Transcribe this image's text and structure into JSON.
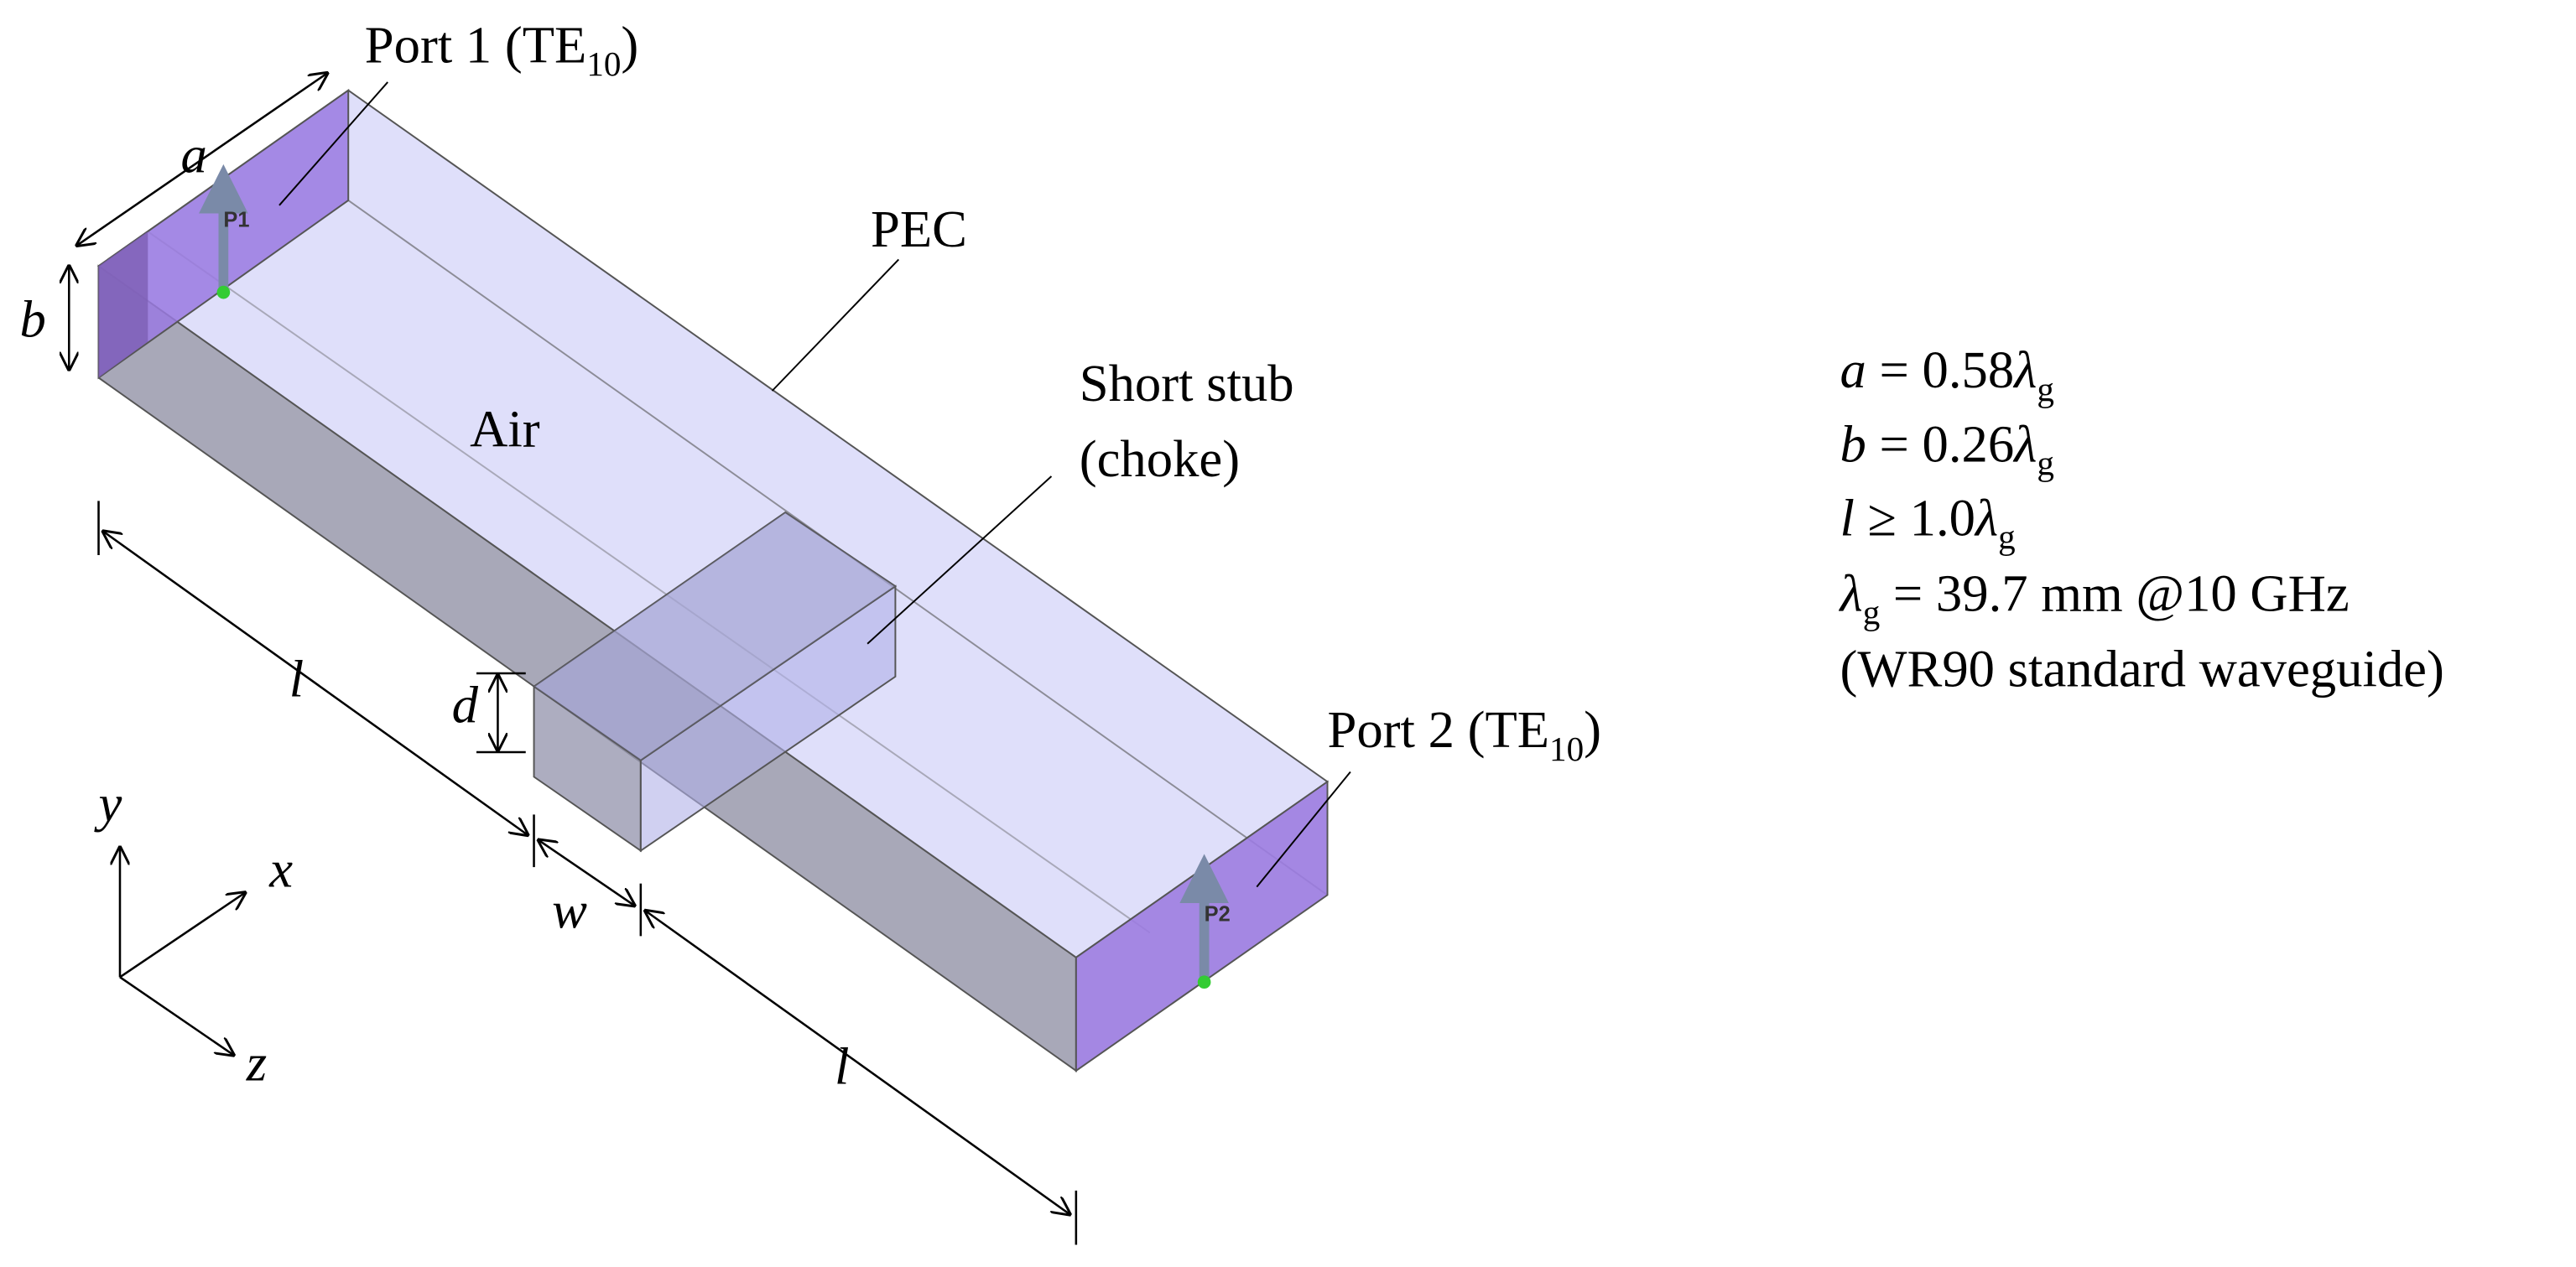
{
  "ports": [
    {
      "prefix": "Port 1 (TE",
      "sub": "10",
      "suffix": ")",
      "marker": "P1"
    },
    {
      "prefix": "Port 2 (TE",
      "sub": "10",
      "suffix": ")",
      "marker": "P2"
    }
  ],
  "materials": {
    "pec": "PEC",
    "air": "Air"
  },
  "stub": {
    "line1": "Short stub",
    "line2": "(choke)"
  },
  "dimensions": {
    "a": "a",
    "b": "b",
    "l1": "l",
    "l2": "l",
    "d": "d",
    "w": "w"
  },
  "axes": {
    "x": "x",
    "y": "y",
    "z": "z"
  },
  "equations": [
    [
      "a",
      " = 0.58",
      "λ",
      "g"
    ],
    [
      "b",
      " = 0.26",
      "λ",
      "g"
    ],
    [
      "l",
      " ≥ 1.0",
      "λ",
      "g"
    ],
    [
      "λ",
      "g",
      " = 39.7 mm @10 GHz"
    ],
    [
      "(WR90 standard waveguide)"
    ]
  ]
}
